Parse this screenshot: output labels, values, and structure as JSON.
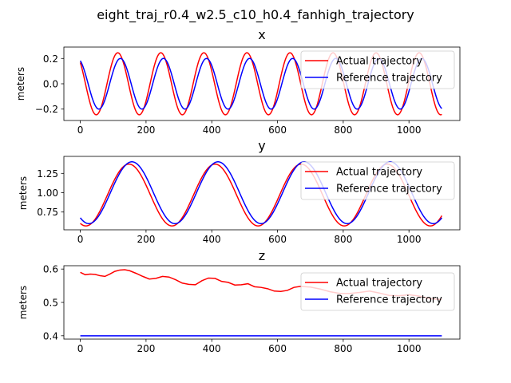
{
  "figure": {
    "suptitle": "eight_traj_r0.4_w2.5_c10_h0.4_fanhigh_trajectory"
  },
  "colors": {
    "actual": "#ff0000",
    "reference": "#0000ff"
  },
  "chart_data": [
    {
      "type": "line",
      "title": "x",
      "xlabel": "",
      "ylabel": "meters",
      "xlim": [
        -50,
        1155
      ],
      "ylim": [
        -0.29,
        0.29
      ],
      "xticks": [
        "0",
        "200",
        "400",
        "600",
        "800",
        "1000"
      ],
      "yticks": [
        "−0.2",
        "0.0",
        "0.2"
      ],
      "legend": {
        "position": "top-right",
        "entries": [
          "Actual trajectory",
          "Reference trajectory"
        ]
      },
      "series": [
        {
          "name": "Actual trajectory",
          "color": "#ff0000",
          "model": {
            "kind": "sine",
            "x_start": 0,
            "x_end": 1100,
            "points": 551,
            "center": 0.0,
            "amplitude": 0.245,
            "period": 131,
            "phase_x": 118,
            "lag": -4
          }
        },
        {
          "name": "Reference trajectory",
          "color": "#0000ff",
          "model": {
            "kind": "sine",
            "x_start": 0,
            "x_end": 1100,
            "points": 551,
            "center": 0.0,
            "amplitude": 0.2,
            "period": 131,
            "phase_x": 122,
            "lag": 0
          }
        }
      ]
    },
    {
      "type": "line",
      "title": "y",
      "xlabel": "",
      "ylabel": "meters",
      "xlim": [
        -50,
        1155
      ],
      "ylim": [
        0.52,
        1.47
      ],
      "xticks": [
        "0",
        "200",
        "400",
        "600",
        "800",
        "1000"
      ],
      "yticks": [
        "0.75",
        "1.00",
        "1.25"
      ],
      "legend": {
        "position": "top-right",
        "entries": [
          "Actual trajectory",
          "Reference trajectory"
        ]
      },
      "series": [
        {
          "name": "Actual trajectory",
          "color": "#ff0000",
          "model": {
            "kind": "sine",
            "x_start": 0,
            "x_end": 1100,
            "points": 551,
            "center": 0.97,
            "amplitude": 0.4,
            "period": 262,
            "phase_x": 148,
            "lag": 0
          }
        },
        {
          "name": "Reference trajectory",
          "color": "#0000ff",
          "model": {
            "kind": "sine",
            "x_start": 0,
            "x_end": 1100,
            "points": 551,
            "center": 1.0,
            "amplitude": 0.4,
            "period": 262,
            "phase_x": 157,
            "lag": 0
          }
        }
      ]
    },
    {
      "type": "line",
      "title": "z",
      "xlabel": "",
      "ylabel": "meters",
      "xlim": [
        -50,
        1155
      ],
      "ylim": [
        0.39,
        0.61
      ],
      "xticks": [
        "0",
        "200",
        "400",
        "600",
        "800",
        "1000"
      ],
      "yticks": [
        "0.4",
        "0.5",
        "0.6"
      ],
      "legend": {
        "position": "top-right",
        "entries": [
          "Actual trajectory",
          "Reference trajectory"
        ]
      },
      "series": [
        {
          "name": "Actual trajectory",
          "color": "#ff0000",
          "x": [
            0,
            15,
            30,
            45,
            60,
            75,
            90,
            105,
            120,
            135,
            150,
            170,
            190,
            210,
            230,
            250,
            270,
            290,
            310,
            330,
            350,
            370,
            390,
            410,
            430,
            450,
            470,
            490,
            510,
            530,
            550,
            570,
            590,
            610,
            630,
            650,
            670,
            700,
            730,
            760,
            790,
            820,
            850,
            880,
            910,
            940,
            970,
            1000,
            1030,
            1060,
            1080,
            1100
          ],
          "y": [
            0.59,
            0.583,
            0.585,
            0.584,
            0.58,
            0.578,
            0.585,
            0.593,
            0.597,
            0.598,
            0.595,
            0.587,
            0.578,
            0.57,
            0.572,
            0.578,
            0.576,
            0.568,
            0.558,
            0.554,
            0.553,
            0.565,
            0.573,
            0.572,
            0.563,
            0.56,
            0.552,
            0.553,
            0.556,
            0.547,
            0.545,
            0.541,
            0.534,
            0.533,
            0.536,
            0.545,
            0.548,
            0.546,
            0.54,
            0.532,
            0.527,
            0.527,
            0.53,
            0.534,
            0.528,
            0.521,
            0.52,
            0.523,
            0.519,
            0.512,
            0.51,
            0.509
          ]
        },
        {
          "name": "Reference trajectory",
          "color": "#0000ff",
          "x": [
            0,
            1100
          ],
          "y": [
            0.4,
            0.4
          ]
        }
      ]
    }
  ]
}
